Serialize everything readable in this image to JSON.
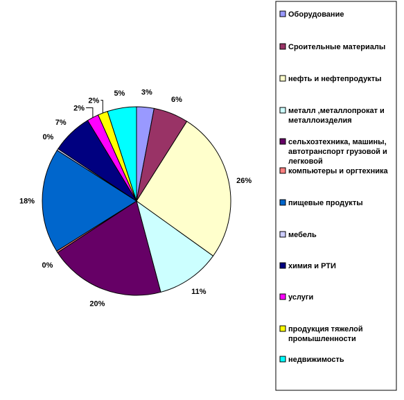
{
  "chart_data": {
    "type": "pie",
    "title": "",
    "legend_position": "right",
    "slices": [
      {
        "label": "Оборудование",
        "legend_lines": [
          "Оборудование"
        ],
        "value": 3,
        "display": "3%",
        "color": "#9999ff"
      },
      {
        "label": "Сроительные материалы",
        "legend_lines": [
          "Сроительные материалы"
        ],
        "value": 6,
        "display": "6%",
        "color": "#993366"
      },
      {
        "label": "нефть и нефтепродукты",
        "legend_lines": [
          "нефть и нефтепродукты"
        ],
        "value": 26,
        "display": "26%",
        "color": "#ffffcc"
      },
      {
        "label": "металл ,металлопрокат и металлоизделия",
        "legend_lines": [
          "металл ,металлопрокат и",
          "металлоизделия"
        ],
        "value": 11,
        "display": "11%",
        "color": "#ccffff"
      },
      {
        "label": "сельхозтехника, машины, автотранспорт грузовой и легковой",
        "legend_lines": [
          "сельхозтехника, машины,",
          "автотранспорт грузовой и",
          "легковой"
        ],
        "value": 20,
        "display": "20%",
        "color": "#660066"
      },
      {
        "label": "компьютеры и оргтехника",
        "legend_lines": [
          "компьютеры и оргтехника"
        ],
        "value": 0.3,
        "display": "0%",
        "color": "#ff8080"
      },
      {
        "label": "пищевые продукты",
        "legend_lines": [
          "пищевые продукты"
        ],
        "value": 18,
        "display": "18%",
        "color": "#0066cc"
      },
      {
        "label": "мебель",
        "legend_lines": [
          "мебель"
        ],
        "value": 0.3,
        "display": "0%",
        "color": "#ccccff"
      },
      {
        "label": "химия и РТИ",
        "legend_lines": [
          "химия и РТИ"
        ],
        "value": 7,
        "display": "7%",
        "color": "#000080"
      },
      {
        "label": "услуги",
        "legend_lines": [
          "услуги"
        ],
        "value": 2,
        "display": "2%",
        "color": "#ff00ff"
      },
      {
        "label": "продукция тяжелой промышленности",
        "legend_lines": [
          "продукция тяжелой",
          "промышленности"
        ],
        "value": 1.7,
        "display": "2%",
        "color": "#ffff00"
      },
      {
        "label": "недвижимость",
        "legend_lines": [
          "недвижимость"
        ],
        "value": 5,
        "display": "5%",
        "color": "#00ffff"
      }
    ]
  }
}
